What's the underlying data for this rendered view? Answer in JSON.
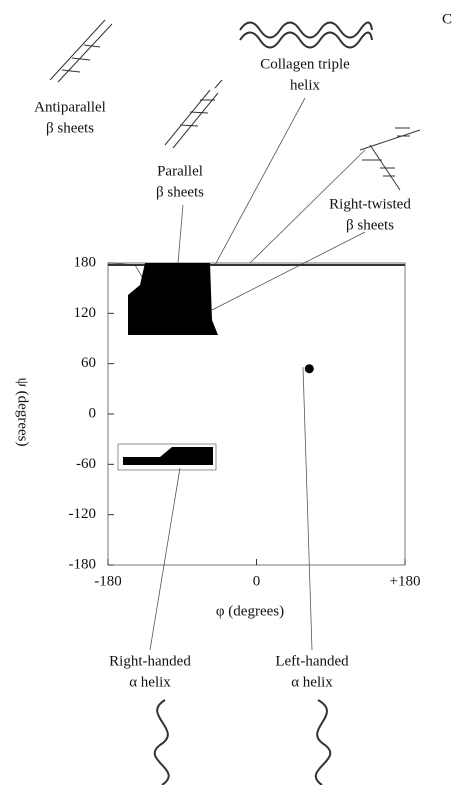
{
  "chart_data": {
    "type": "scatter",
    "panel_label": "C",
    "x_label": "φ (degrees)",
    "y_label": "ψ (degrees)",
    "xlim": [
      -180,
      180
    ],
    "ylim": [
      -180,
      180
    ],
    "xticks": [
      -180,
      0,
      {
        "value": 180,
        "label": "+180"
      }
    ],
    "yticks": [
      180,
      120,
      60,
      0,
      -60,
      -120,
      -180
    ],
    "x": [
      64
    ],
    "values": [
      54
    ],
    "color": "#000000",
    "annotations": [
      [
        "Antiparallel",
        "β sheets"
      ],
      [
        "Parallel",
        "β sheets"
      ],
      [
        "Collagen triple",
        "helix"
      ],
      [
        "Right-twisted",
        "β sheets"
      ],
      [
        "Right-handed",
        "α helix"
      ],
      [
        "Left-handed",
        "α helix"
      ]
    ]
  }
}
